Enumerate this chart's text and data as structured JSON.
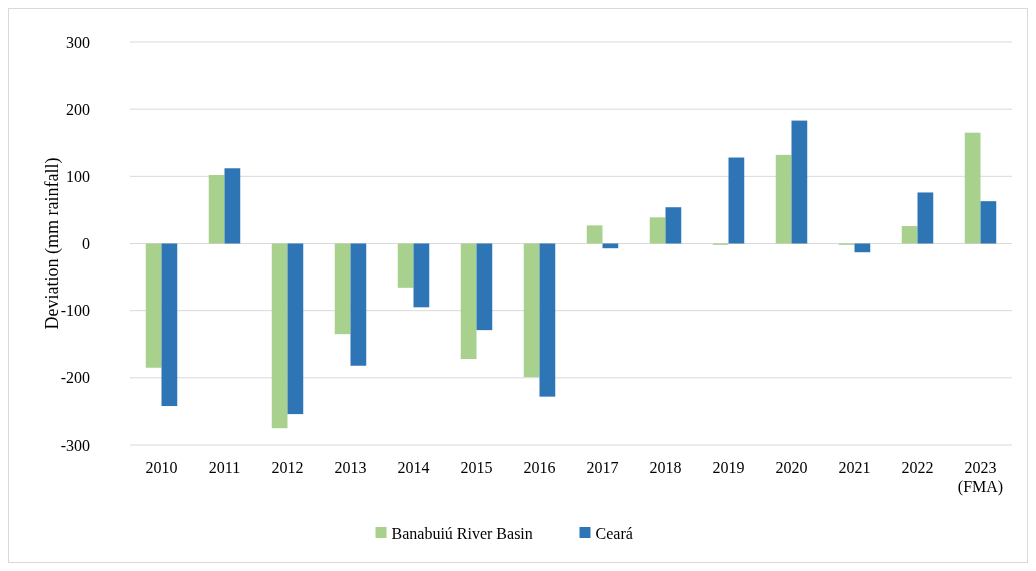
{
  "chart_data": {
    "type": "bar",
    "ylabel": "Deviation (mm rainfall)",
    "categories": [
      "2010",
      "2011",
      "2012",
      "2013",
      "2014",
      "2015",
      "2016",
      "2017",
      "2018",
      "2019",
      "2020",
      "2021",
      "2022",
      "2023\n(FMA)"
    ],
    "series": [
      {
        "name": "Banabuiú River Basin",
        "color": "#a9d18e",
        "values": [
          -185,
          102,
          -275,
          -135,
          -66,
          -172,
          -199,
          27,
          39,
          -2,
          132,
          -2,
          26,
          165
        ]
      },
      {
        "name": "Ceará",
        "color": "#2e75b6",
        "values": [
          -242,
          112,
          -254,
          -182,
          -95,
          -129,
          -228,
          -7,
          54,
          128,
          183,
          -13,
          76,
          63
        ]
      }
    ],
    "ylim": [
      -300,
      300
    ],
    "yticks": [
      -300,
      -200,
      -100,
      0,
      100,
      200,
      300
    ],
    "grid": "y",
    "legend": "bottom"
  }
}
